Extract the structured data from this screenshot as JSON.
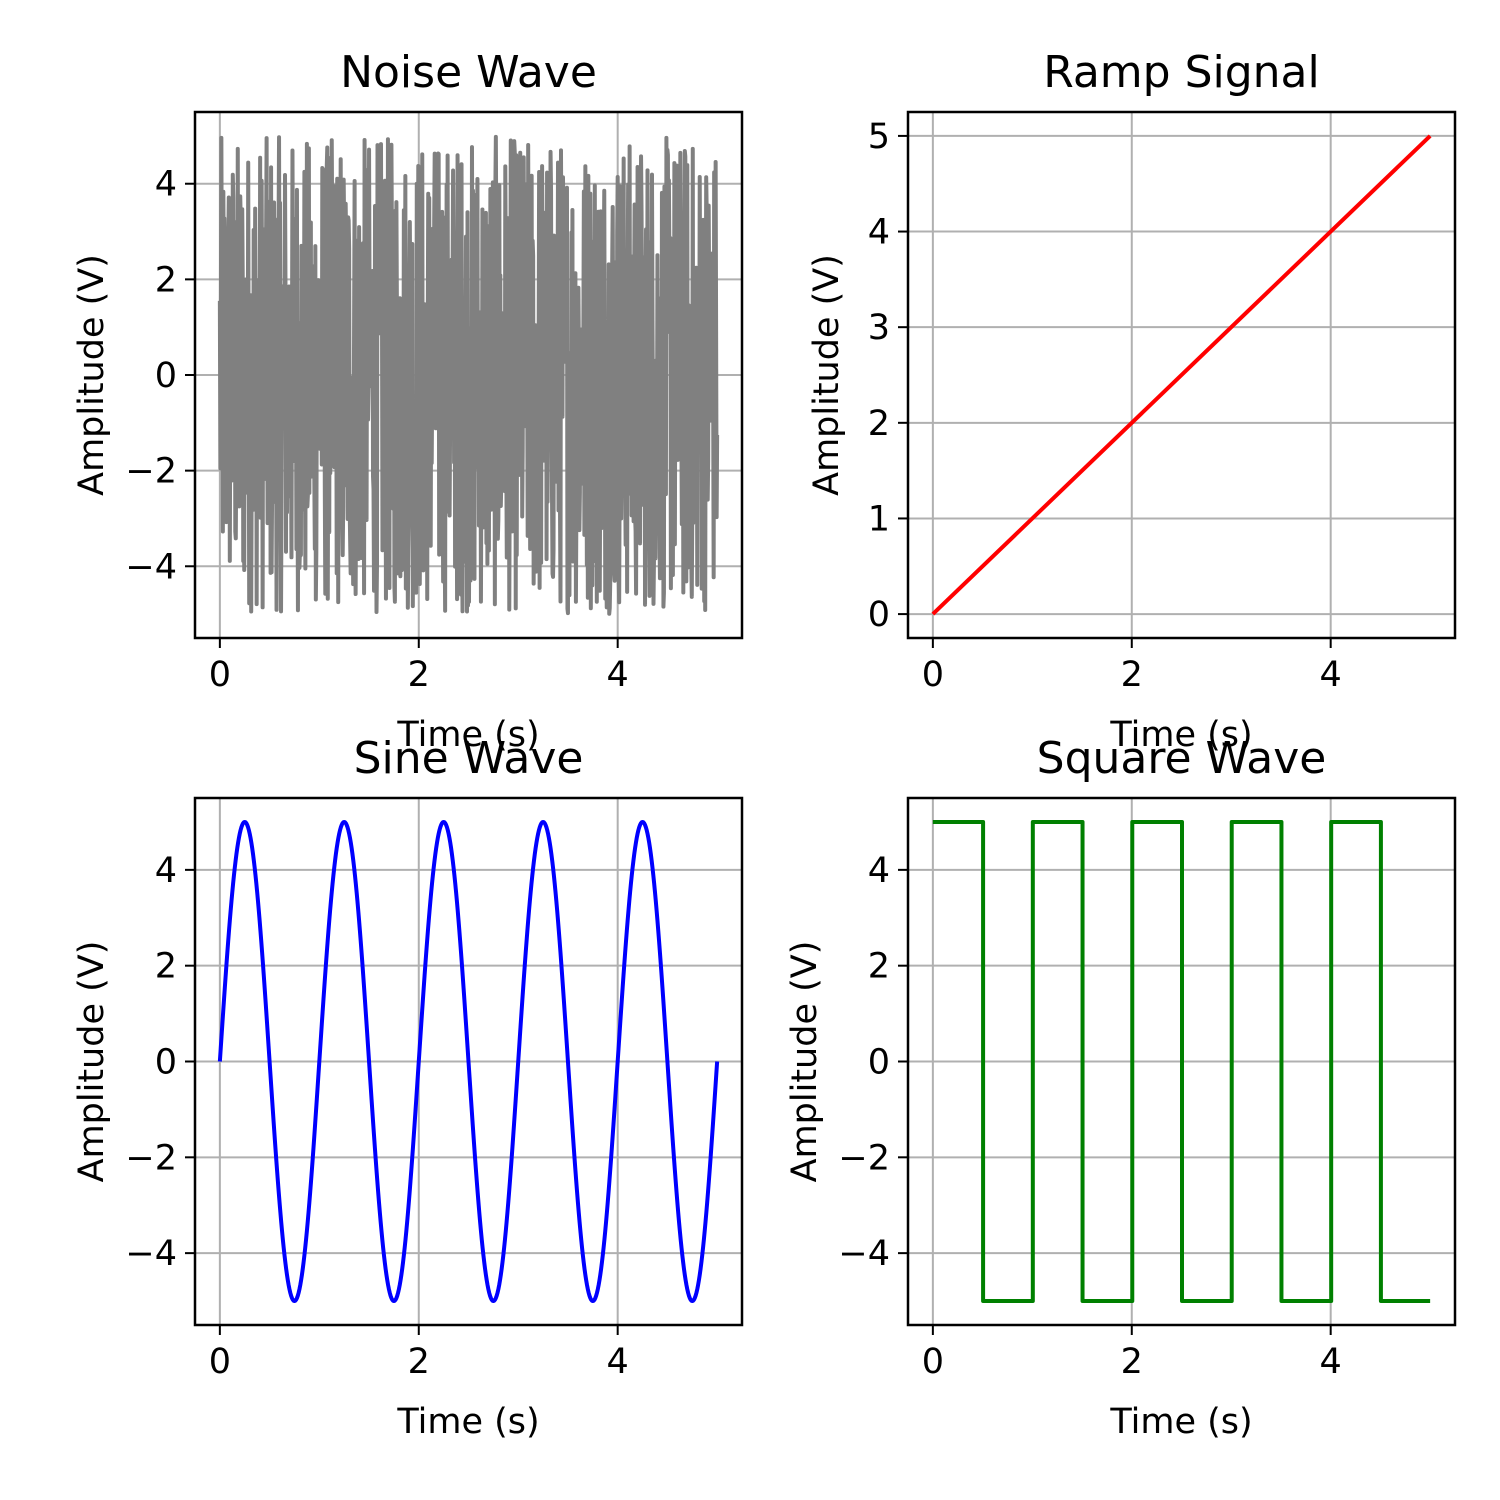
{
  "chart_data": [
    {
      "id": "noise",
      "type": "line",
      "title": "Noise Wave",
      "xlabel": "Time (s)",
      "ylabel": "Amplitude (V)",
      "xlim": [
        -0.25,
        5.25
      ],
      "ylim": [
        -5.5,
        5.5
      ],
      "xticks": [
        0,
        2,
        4
      ],
      "yticks": [
        -4,
        -2,
        0,
        2,
        4
      ],
      "grid": true,
      "color": "#808080",
      "series": [
        {
          "x_range": [
            0,
            5
          ],
          "y_range": [
            -5,
            5
          ],
          "samples": 1000,
          "kind": "uniform-noise"
        }
      ]
    },
    {
      "id": "ramp",
      "type": "line",
      "title": "Ramp Signal",
      "xlabel": "Time (s)",
      "ylabel": "Amplitude (V)",
      "xlim": [
        -0.25,
        5.25
      ],
      "ylim": [
        -0.25,
        5.25
      ],
      "xticks": [
        0,
        2,
        4
      ],
      "yticks": [
        0,
        1,
        2,
        3,
        4,
        5
      ],
      "grid": true,
      "color": "#ff0000",
      "series": [
        {
          "x": [
            0,
            5
          ],
          "y": [
            0,
            5
          ]
        }
      ]
    },
    {
      "id": "sine",
      "type": "line",
      "title": "Sine Wave",
      "xlabel": "Time (s)",
      "ylabel": "Amplitude (V)",
      "xlim": [
        -0.25,
        5.25
      ],
      "ylim": [
        -5.5,
        5.5
      ],
      "xticks": [
        0,
        2,
        4
      ],
      "yticks": [
        -4,
        -2,
        0,
        2,
        4
      ],
      "grid": true,
      "color": "#0000ff",
      "series": [
        {
          "function": "5*sin(2*pi*1*t)",
          "amplitude": 5,
          "frequency_hz": 1,
          "x_range": [
            0,
            5
          ]
        }
      ]
    },
    {
      "id": "square",
      "type": "line",
      "title": "Square Wave",
      "xlabel": "Time (s)",
      "ylabel": "Amplitude (V)",
      "xlim": [
        -0.25,
        5.25
      ],
      "ylim": [
        -5.5,
        5.5
      ],
      "xticks": [
        0,
        2,
        4
      ],
      "yticks": [
        -4,
        -2,
        0,
        2,
        4
      ],
      "grid": true,
      "color": "#008000",
      "series": [
        {
          "function": "5*sign(sin(2*pi*1*t))",
          "amplitude": 5,
          "frequency_hz": 1,
          "x_range": [
            0,
            5
          ]
        }
      ]
    }
  ]
}
